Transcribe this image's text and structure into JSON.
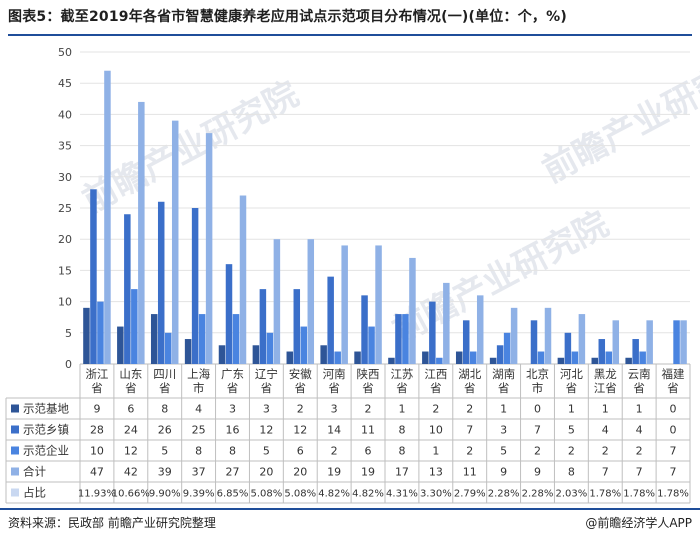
{
  "title": "图表5：截至2019年各省市智慧健康养老应用试点示范项目分布情况(一)(单位：个，%)",
  "source": "资料来源：民政部 前瞻产业研究院整理",
  "brand": "@前瞻经济学人APP",
  "watermark": "前瞻产业研究院",
  "colors": {
    "base": "#2e5597",
    "town": "#3b6fc9",
    "enterprise": "#4a84e0",
    "total": "#8fb1e6",
    "share": "#c9d8f1",
    "rule": "#1f4e9a"
  },
  "chart_data": {
    "type": "bar",
    "ylim": [
      0,
      50
    ],
    "yticks": [
      0,
      5,
      10,
      15,
      20,
      25,
      30,
      35,
      40,
      45,
      50
    ],
    "categories": [
      "浙江省",
      "山东省",
      "四川省",
      "上海市",
      "广东省",
      "辽宁省",
      "安徽省",
      "河南省",
      "陕西省",
      "江苏省",
      "江西省",
      "湖北省",
      "湖南省",
      "北京市",
      "河北省",
      "黑龙江省",
      "云南省",
      "福建省"
    ],
    "category_lines": [
      [
        "浙江",
        "省"
      ],
      [
        "山东",
        "省"
      ],
      [
        "四川",
        "省"
      ],
      [
        "上海",
        "市"
      ],
      [
        "广东",
        "省"
      ],
      [
        "辽宁",
        "省"
      ],
      [
        "安徽",
        "省"
      ],
      [
        "河南",
        "省"
      ],
      [
        "陕西",
        "省"
      ],
      [
        "江苏",
        "省"
      ],
      [
        "江西",
        "省"
      ],
      [
        "湖北",
        "省"
      ],
      [
        "湖南",
        "省"
      ],
      [
        "北京",
        "市"
      ],
      [
        "河北",
        "省"
      ],
      [
        "黑龙",
        "江省"
      ],
      [
        "云南",
        "省"
      ],
      [
        "福建",
        "省"
      ]
    ],
    "series": [
      {
        "name": "示范基地",
        "values": [
          9,
          6,
          8,
          4,
          3,
          3,
          2,
          3,
          2,
          1,
          2,
          2,
          1,
          0,
          1,
          1,
          1,
          0
        ]
      },
      {
        "name": "示范乡镇",
        "values": [
          28,
          24,
          26,
          25,
          16,
          12,
          12,
          14,
          11,
          8,
          10,
          7,
          3,
          7,
          5,
          4,
          4,
          0
        ]
      },
      {
        "name": "示范企业",
        "values": [
          10,
          12,
          5,
          8,
          8,
          5,
          6,
          2,
          6,
          8,
          1,
          2,
          5,
          2,
          2,
          2,
          2,
          7
        ]
      },
      {
        "name": "合计",
        "values": [
          47,
          42,
          39,
          37,
          27,
          20,
          20,
          19,
          19,
          17,
          13,
          11,
          9,
          9,
          8,
          7,
          7,
          7
        ]
      }
    ],
    "share": {
      "name": "占比",
      "values": [
        "11.93%",
        "10.66%",
        "9.90%",
        "9.39%",
        "6.85%",
        "5.08%",
        "5.08%",
        "4.82%",
        "4.82%",
        "4.31%",
        "3.30%",
        "2.79%",
        "2.28%",
        "2.28%",
        "2.03%",
        "1.78%",
        "1.78%",
        "1.78%"
      ]
    }
  }
}
